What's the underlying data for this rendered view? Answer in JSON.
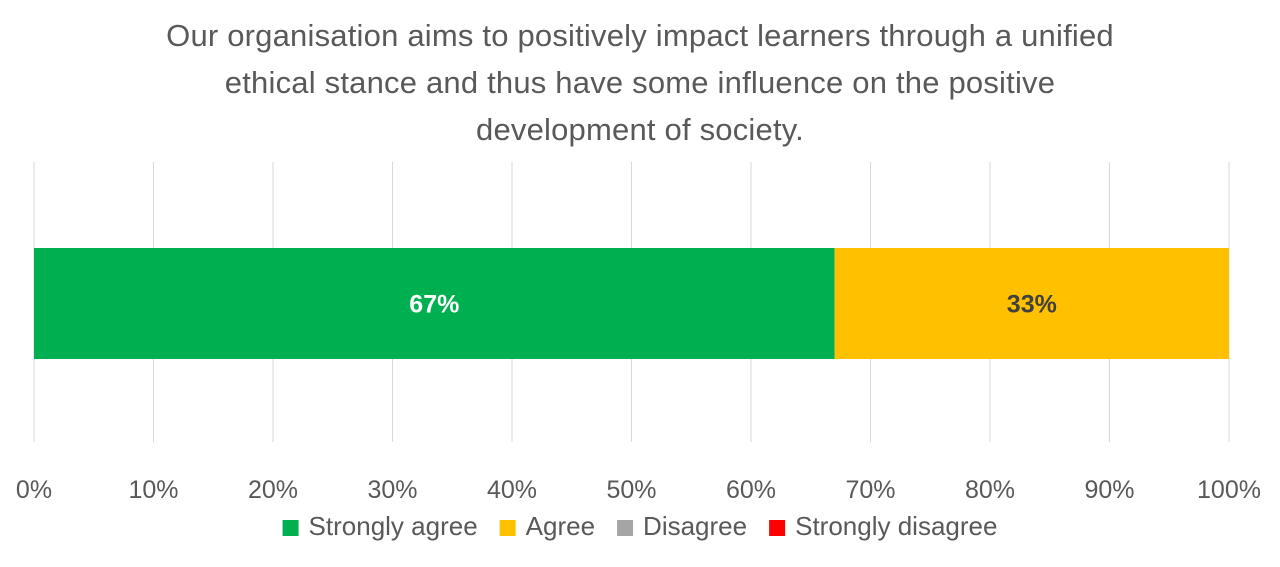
{
  "chart_data": {
    "type": "bar",
    "orientation": "horizontal-stacked-100",
    "title": "Our organisation aims to positively impact learners through a unified ethical stance and thus have some influence on the positive development of society.",
    "categories": [
      ""
    ],
    "series": [
      {
        "name": "Strongly agree",
        "values": [
          67
        ],
        "color": "#00b050",
        "label": "67%",
        "label_color": "#ffffff"
      },
      {
        "name": "Agree",
        "values": [
          33
        ],
        "color": "#ffc000",
        "label": "33%",
        "label_color": "#404040"
      },
      {
        "name": "Disagree",
        "values": [
          0
        ],
        "color": "#a5a5a5",
        "label": "",
        "label_color": "#404040"
      },
      {
        "name": "Strongly disagree",
        "values": [
          0
        ],
        "color": "#ff0000",
        "label": "",
        "label_color": "#404040"
      }
    ],
    "xlim": [
      0,
      100
    ],
    "xticks": [
      "0%",
      "10%",
      "20%",
      "30%",
      "40%",
      "50%",
      "60%",
      "70%",
      "80%",
      "90%",
      "100%"
    ],
    "xlabel": "",
    "ylabel": "",
    "grid": true,
    "legend": "bottom"
  }
}
